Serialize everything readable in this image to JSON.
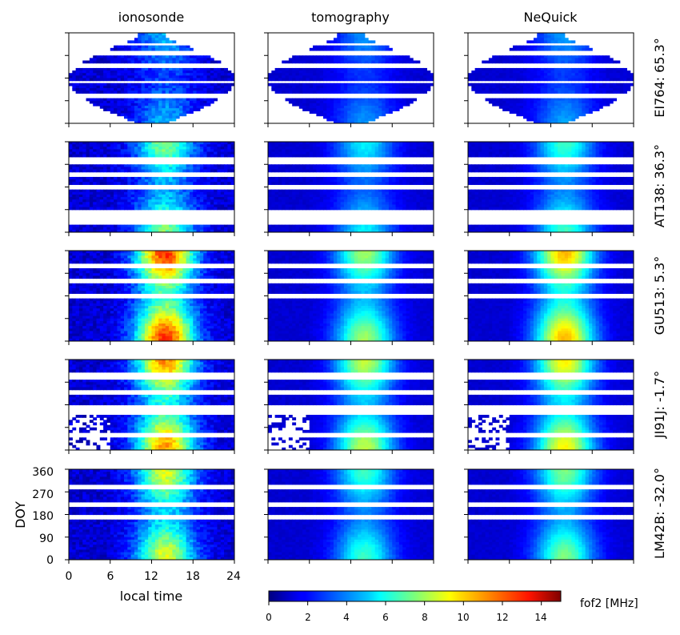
{
  "chart_data": {
    "type": "heatmap",
    "columns": [
      "ionosonde",
      "tomography",
      "NeQuick"
    ],
    "rows": [
      "EI764: 65.3°",
      "AT138: 36.3°",
      "GU513: 5.3°",
      "JI91J: -1.7°",
      "LM42B: -32.0°"
    ],
    "xlabel": "local time",
    "ylabel": "DOY",
    "x_ticks": [
      "0",
      "6",
      "12",
      "18",
      "24"
    ],
    "y_ticks": [
      "0",
      "90",
      "180",
      "270",
      "360"
    ],
    "xlim": [
      0,
      24
    ],
    "ylim": [
      0,
      365
    ],
    "colorbar": {
      "label": "fof2 [MHz]",
      "ticks": [
        "0",
        "2",
        "4",
        "6",
        "8",
        "10",
        "12",
        "14"
      ],
      "range": [
        0,
        15
      ],
      "colormap": "jet"
    },
    "approx_peak_fof2_MHz": [
      [
        4.5,
        4.0,
        4.2
      ],
      [
        7.5,
        5.5,
        6.5
      ],
      [
        12.5,
        8.0,
        10.5
      ],
      [
        11.0,
        8.5,
        9.5
      ],
      [
        9.0,
        6.5,
        7.5
      ]
    ]
  }
}
